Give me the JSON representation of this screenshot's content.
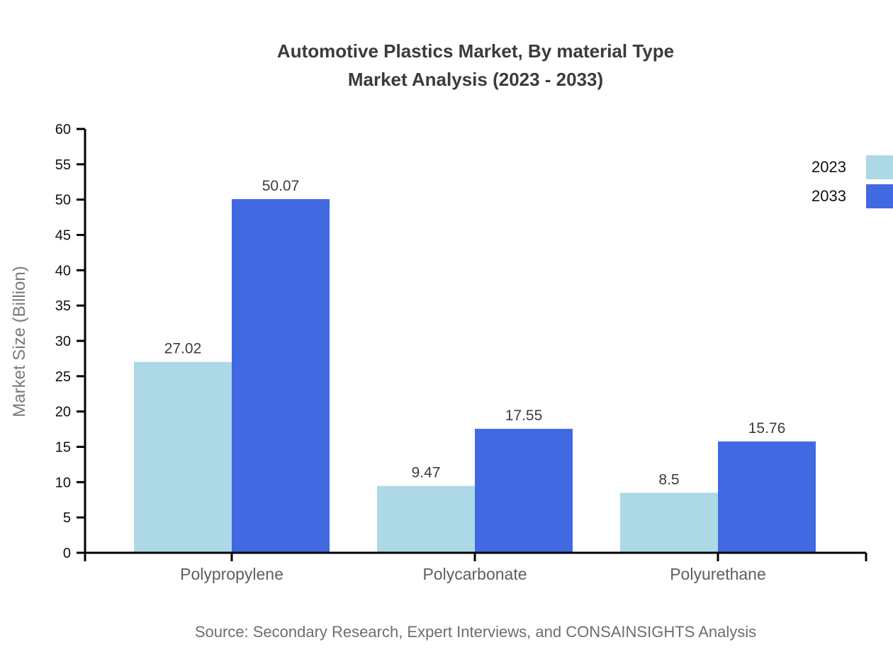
{
  "title": {
    "line1": "Automotive Plastics Market, By material Type",
    "line2": "Market Analysis (2023 - 2033)"
  },
  "source": "Source: Secondary Research, Expert Interviews, and CONSAINSIGHTS Analysis",
  "legend": {
    "items": [
      {
        "label": "2023",
        "color": "#ADD8E6"
      },
      {
        "label": "2033",
        "color": "#4169E1"
      }
    ]
  },
  "chart_data": {
    "type": "bar",
    "title": "Automotive Plastics Market, By material Type Market Analysis (2023 - 2033)",
    "categories": [
      "Polypropylene",
      "Polycarbonate",
      "Polyurethane"
    ],
    "series": [
      {
        "name": "2023",
        "color": "#ADD8E6",
        "values": [
          27.02,
          9.47,
          8.5
        ]
      },
      {
        "name": "2033",
        "color": "#4169E1",
        "values": [
          50.07,
          17.55,
          15.76
        ]
      }
    ],
    "xlabel": "",
    "ylabel": "Market Size (Billion)",
    "ylim": [
      0,
      60
    ],
    "ytick_step": 5,
    "grid": false,
    "legend_position": "top-right",
    "colors": {
      "axis": "#000000",
      "tick_label": "#111111",
      "category_label": "#5f5f5f",
      "value_label": "#3c3c3c",
      "title": "#3b3b3b",
      "source": "#6e6e6e"
    }
  }
}
